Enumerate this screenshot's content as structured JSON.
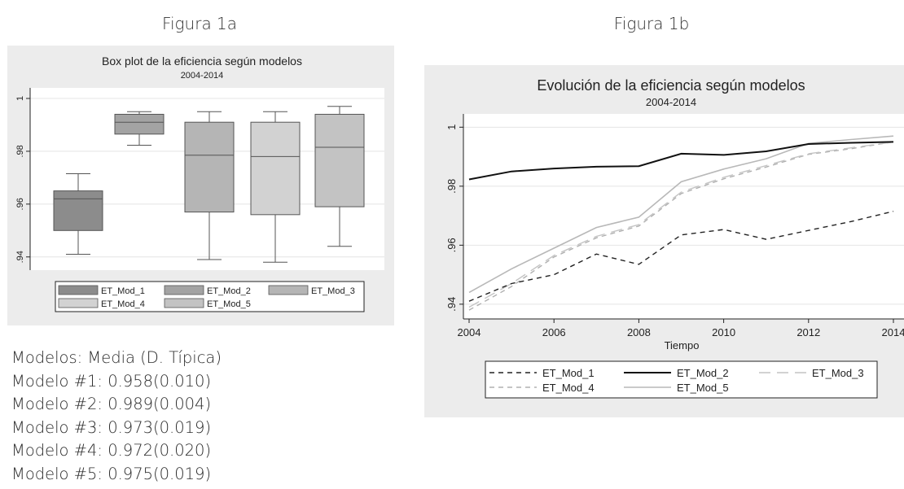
{
  "headings": {
    "fig_a": "Figura 1a",
    "fig_b": "Figura 1b"
  },
  "stats": {
    "header": "Modelos:  Media (D. Típica)",
    "rows": [
      "Modelo #1:  0.958(0.010)",
      "Modelo #2:  0.989(0.004)",
      "Modelo #3:  0.973(0.019)",
      "Modelo #4:  0.972(0.020)",
      "Modelo #5:  0.975(0.019)"
    ]
  },
  "chart_data": [
    {
      "type": "box",
      "title": "Box plot de la eficiencia según modelos",
      "subtitle": "2004-2014",
      "ylim": [
        0.935,
        1.004
      ],
      "yticks": [
        0.94,
        0.96,
        0.98,
        1
      ],
      "ytick_labels": [
        ".94",
        ".96",
        ".98",
        "1"
      ],
      "grid": true,
      "legend_position": "bottom",
      "series": [
        {
          "name": "ET_Mod_1",
          "color": "#8c8c8c",
          "whisker_low": 0.941,
          "q1": 0.95,
          "median": 0.962,
          "q3": 0.965,
          "whisker_high": 0.9715
        },
        {
          "name": "ET_Mod_2",
          "color": "#a3a3a3",
          "whisker_low": 0.9823,
          "q1": 0.9865,
          "median": 0.991,
          "q3": 0.994,
          "whisker_high": 0.995
        },
        {
          "name": "ET_Mod_3",
          "color": "#b5b5b5",
          "whisker_low": 0.939,
          "q1": 0.957,
          "median": 0.9785,
          "q3": 0.991,
          "whisker_high": 0.995
        },
        {
          "name": "ET_Mod_4",
          "color": "#d2d2d2",
          "whisker_low": 0.938,
          "q1": 0.956,
          "median": 0.978,
          "q3": 0.991,
          "whisker_high": 0.995
        },
        {
          "name": "ET_Mod_5",
          "color": "#c3c3c3",
          "whisker_low": 0.944,
          "q1": 0.959,
          "median": 0.9815,
          "q3": 0.994,
          "whisker_high": 0.997
        }
      ]
    },
    {
      "type": "line",
      "title": "Evolución de la eficiencia según modelos",
      "subtitle": "2004-2014",
      "xlabel": "Tiempo",
      "xlim": [
        2004,
        2014
      ],
      "ylim": [
        0.935,
        1.0045
      ],
      "xticks": [
        2004,
        2006,
        2008,
        2010,
        2012,
        2014
      ],
      "xtick_labels": [
        "2004",
        "2006",
        "2008",
        "2010",
        "2012",
        "2014"
      ],
      "yticks": [
        0.94,
        0.96,
        0.98,
        1
      ],
      "ytick_labels": [
        ".94",
        ".96",
        ".98",
        "1"
      ],
      "grid": true,
      "legend_position": "bottom",
      "x": [
        2004,
        2005,
        2006,
        2007,
        2008,
        2009,
        2010,
        2011,
        2012,
        2013,
        2014
      ],
      "series": [
        {
          "name": "ET_Mod_1",
          "color": "#222222",
          "dash": "6,5",
          "width": 1.4,
          "values": [
            0.941,
            0.947,
            0.95,
            0.957,
            0.9535,
            0.9635,
            0.9653,
            0.962,
            0.965,
            0.968,
            0.9715
          ]
        },
        {
          "name": "ET_Mod_2",
          "color": "#111111",
          "dash": "",
          "width": 2,
          "values": [
            0.9823,
            0.985,
            0.986,
            0.9866,
            0.9868,
            0.991,
            0.9906,
            0.9918,
            0.9943,
            0.9947,
            0.995
          ]
        },
        {
          "name": "ET_Mod_3",
          "color": "#c4c4c4",
          "dash": "14,8",
          "width": 1.4,
          "values": [
            0.939,
            0.947,
            0.9565,
            0.963,
            0.967,
            0.978,
            0.983,
            0.987,
            0.991,
            0.993,
            0.995
          ]
        },
        {
          "name": "ET_Mod_4",
          "color": "#b0b0b0",
          "dash": "6,5",
          "width": 1.4,
          "values": [
            0.938,
            0.946,
            0.956,
            0.9625,
            0.9665,
            0.9775,
            0.9825,
            0.9865,
            0.9908,
            0.9927,
            0.995
          ]
        },
        {
          "name": "ET_Mod_5",
          "color": "#b8b8b8",
          "dash": "",
          "width": 1.6,
          "values": [
            0.944,
            0.952,
            0.959,
            0.966,
            0.9695,
            0.9815,
            0.9858,
            0.9893,
            0.9945,
            0.9958,
            0.997
          ]
        }
      ]
    }
  ]
}
